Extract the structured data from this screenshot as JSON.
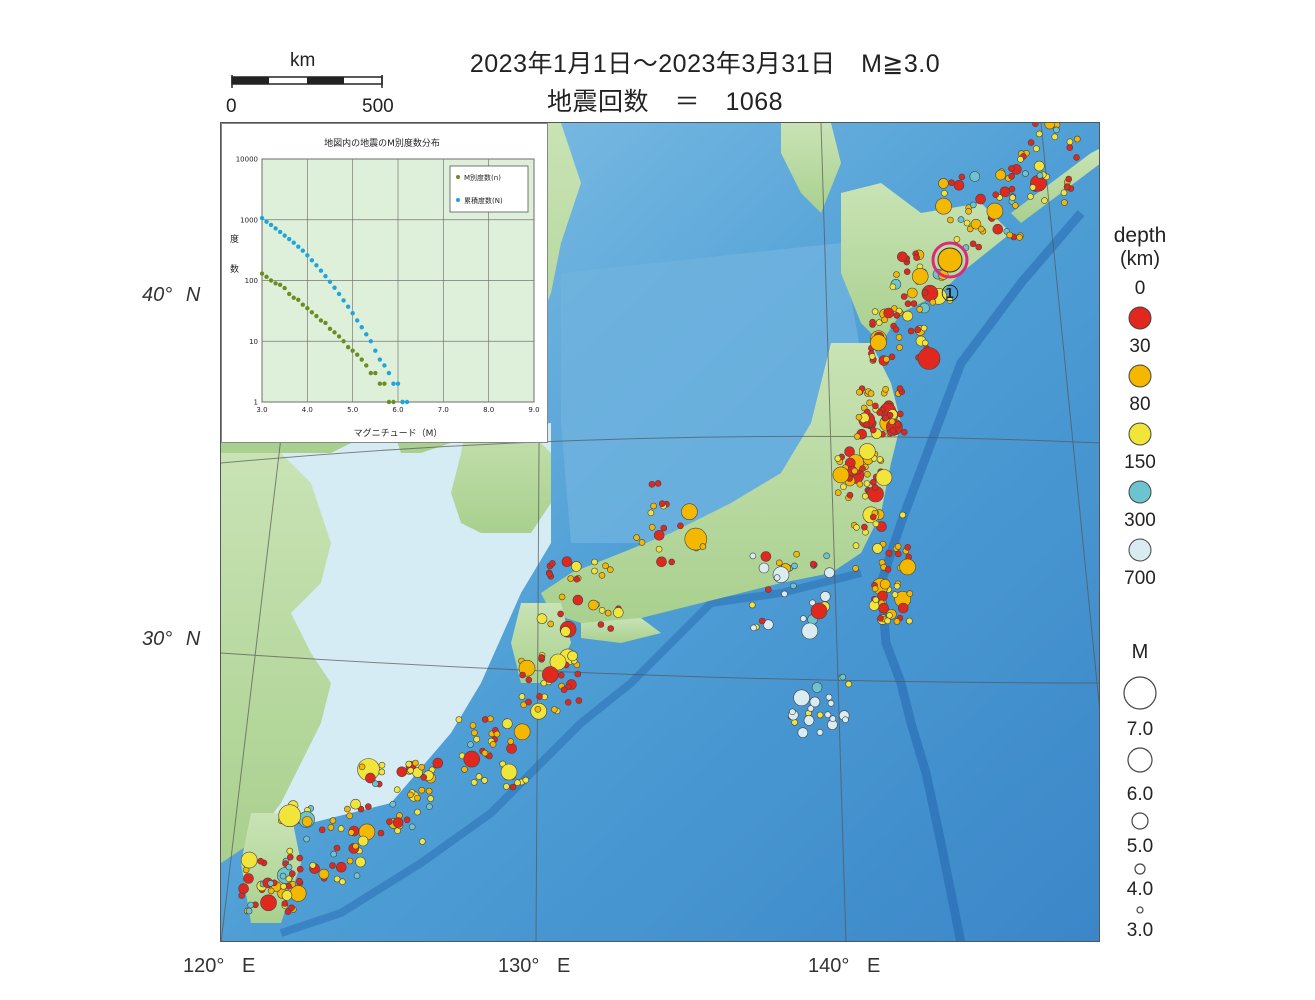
{
  "header": {
    "period_line": "2023年1月1日～2023年3月31日　M≧3.0",
    "count_line": "地震回数　＝　1068"
  },
  "scale_bar": {
    "unit": "km",
    "min_label": "0",
    "max_label": "500"
  },
  "axes": {
    "latitudes": [
      {
        "label": "40°",
        "dir": "N"
      },
      {
        "label": "30°",
        "dir": "N"
      }
    ],
    "longitudes": [
      {
        "label": "120°",
        "dir": "E"
      },
      {
        "label": "130°",
        "dir": "E"
      },
      {
        "label": "140°",
        "dir": "E"
      }
    ]
  },
  "legend": {
    "depth_title_1": "depth",
    "depth_title_2": "(km)",
    "depth_classes": [
      {
        "label": "0",
        "color": "#e0281e"
      },
      {
        "label": "30",
        "color": "#f5b800"
      },
      {
        "label": "80",
        "color": "#f2e53a"
      },
      {
        "label": "150",
        "color": "#6cc4cf"
      },
      {
        "label": "300",
        "color": "#d9ecf2"
      },
      {
        "label": "700"
      }
    ],
    "mag_title": "M",
    "mag_classes": [
      "7.0",
      "6.0",
      "5.0",
      "4.0",
      "3.0"
    ]
  },
  "annotation": {
    "event_marker_label": "①"
  },
  "inset": {
    "title": "地図内の地震のM別度数分布",
    "ylabel_1": "度",
    "ylabel_2": "数",
    "xlabel": "マグニチュード（M）",
    "legend_per_m": "M別度数(n)",
    "legend_cumulative": "累積度数(N)",
    "y_ticks": [
      "10000",
      "1000",
      "100",
      "10",
      "1"
    ],
    "x_ticks": [
      "3.0",
      "4.0",
      "5.0",
      "6.0",
      "7.0",
      "8.0",
      "9.0"
    ]
  },
  "chart_data": {
    "type": "scatter",
    "title": "地図内の地震のM別度数分布",
    "xlabel": "マグニチュード（M）",
    "ylabel": "度数",
    "xlim": [
      3.0,
      9.0
    ],
    "ylim": [
      1,
      10000
    ],
    "y_scale": "log",
    "grid": true,
    "legend_position": "top-right",
    "series": [
      {
        "name": "M別度数(n)",
        "color": "#6b8e23",
        "x": [
          3.0,
          3.1,
          3.2,
          3.3,
          3.4,
          3.5,
          3.6,
          3.7,
          3.8,
          3.9,
          4.0,
          4.1,
          4.2,
          4.3,
          4.4,
          4.5,
          4.6,
          4.7,
          4.8,
          4.9,
          5.0,
          5.1,
          5.2,
          5.3,
          5.4,
          5.5,
          5.6,
          5.7,
          5.8,
          5.9,
          6.1
        ],
        "y": [
          130,
          115,
          100,
          90,
          85,
          75,
          60,
          52,
          48,
          40,
          35,
          30,
          26,
          22,
          20,
          16,
          14,
          12,
          10,
          8,
          7,
          6,
          5,
          4,
          3,
          3,
          2,
          2,
          1,
          1,
          1
        ]
      },
      {
        "name": "累積度数(N)",
        "color": "#1fa5d9",
        "x": [
          3.0,
          3.1,
          3.2,
          3.3,
          3.4,
          3.5,
          3.6,
          3.7,
          3.8,
          3.9,
          4.0,
          4.1,
          4.2,
          4.3,
          4.4,
          4.5,
          4.6,
          4.7,
          4.8,
          4.9,
          5.0,
          5.1,
          5.2,
          5.3,
          5.4,
          5.5,
          5.6,
          5.7,
          5.8,
          5.9,
          6.0,
          6.1,
          6.2
        ],
        "y": [
          1068,
          930,
          820,
          720,
          630,
          550,
          480,
          420,
          360,
          310,
          260,
          215,
          178,
          145,
          118,
          95,
          76,
          60,
          47,
          37,
          29,
          22,
          17,
          13,
          10,
          7,
          5,
          4,
          3,
          2,
          2,
          1,
          1
        ]
      }
    ]
  }
}
